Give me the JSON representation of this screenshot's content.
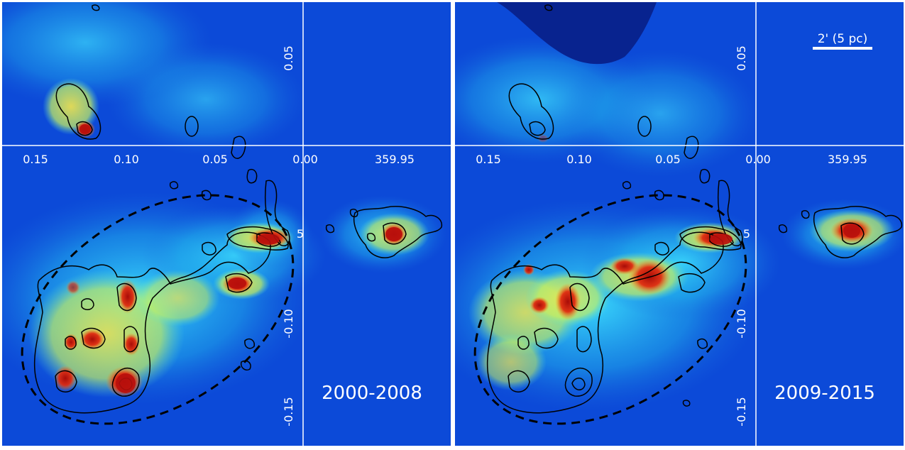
{
  "panels": [
    {
      "id": "left",
      "period_label": "2000-2008",
      "x_ticks": [
        "0.15",
        "0.10",
        "0.05",
        "0.00",
        "359.95"
      ],
      "y_ticks": [
        "0.05",
        "-0.10",
        "-0.15"
      ],
      "partial_tick": "5"
    },
    {
      "id": "right",
      "period_label": "2009-2015",
      "x_ticks": [
        "0.15",
        "0.10",
        "0.05",
        "0.00",
        "359.95"
      ],
      "y_ticks": [
        "0.05",
        "-0.10",
        "-0.15"
      ],
      "partial_tick": "5"
    }
  ],
  "scale_bar": {
    "label": "2' (5 pc)"
  },
  "colors": {
    "background_blue": "#0a3fd6",
    "cyan": "#2bd8f0",
    "yellow": "#f2e33a",
    "red": "#c8140c",
    "divider": "#ffffff",
    "contour": "#000000",
    "axis_text": "#ffffff"
  }
}
